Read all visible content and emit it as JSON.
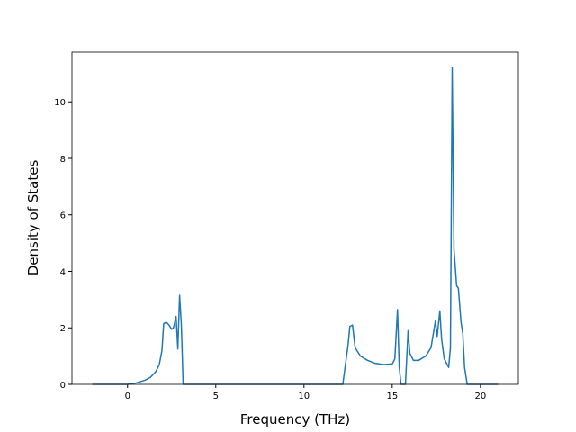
{
  "chart_data": {
    "type": "line",
    "x_label": "Frequency (THz)",
    "y_label": "Density of States",
    "x": [
      -2,
      0,
      0.5,
      1,
      1.3,
      1.6,
      1.8,
      1.95,
      2.05,
      2.2,
      2.35,
      2.5,
      2.6,
      2.75,
      2.85,
      2.95,
      3.05,
      3.15,
      12.2,
      12.5,
      12.6,
      12.75,
      12.9,
      13.2,
      13.6,
      14.0,
      14.5,
      15.0,
      15.15,
      15.3,
      15.4,
      15.5,
      15.75,
      15.9,
      16.0,
      16.2,
      16.5,
      16.9,
      17.2,
      17.45,
      17.55,
      17.7,
      17.8,
      17.95,
      18.2,
      18.3,
      18.4,
      18.5,
      18.65,
      18.75,
      18.9,
      19.0,
      19.1,
      19.25,
      21
    ],
    "series": [
      {
        "color": "#1f77b4",
        "values": [
          0,
          0,
          0.05,
          0.15,
          0.25,
          0.45,
          0.7,
          1.2,
          2.15,
          2.2,
          2.1,
          1.95,
          2.0,
          2.4,
          1.25,
          3.15,
          2.1,
          0,
          0,
          1.4,
          2.05,
          2.1,
          1.3,
          1.0,
          0.85,
          0.75,
          0.7,
          0.72,
          0.9,
          2.65,
          0.6,
          0,
          0,
          1.9,
          1.1,
          0.85,
          0.85,
          1.0,
          1.3,
          2.25,
          1.7,
          2.6,
          1.6,
          0.9,
          0.6,
          1.3,
          11.2,
          4.8,
          3.5,
          3.4,
          2.2,
          1.8,
          0.6,
          0,
          0
        ]
      }
    ],
    "xlim": [
      -3.15,
      22.15
    ],
    "ylim": [
      0,
      11.76
    ],
    "xticks": [
      0,
      5,
      10,
      15,
      20
    ],
    "yticks": [
      0,
      2,
      4,
      6,
      8,
      10
    ]
  }
}
